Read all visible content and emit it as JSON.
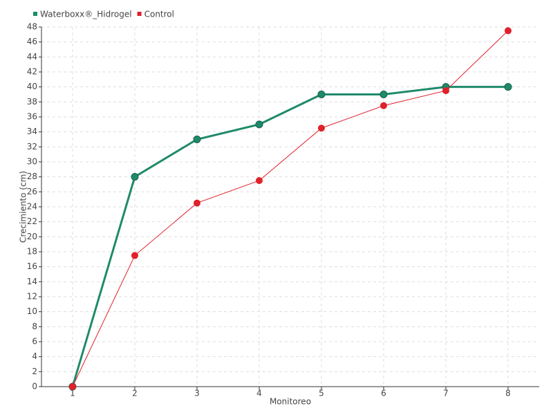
{
  "chart_data": {
    "type": "line",
    "x_label": "Monitoreo",
    "y_label": "Crecimiento (cm)",
    "categories": [
      "1",
      "2",
      "3",
      "4",
      "5",
      "6",
      "7",
      "8"
    ],
    "series": [
      {
        "name": "Waterboxx®_Hidrogel",
        "color": "#1f8a6a",
        "values": [
          0,
          28,
          33,
          35,
          39,
          39,
          40,
          40
        ]
      },
      {
        "name": "Control",
        "color": "#e0202a",
        "values": [
          0,
          17.5,
          24.5,
          27.5,
          34.5,
          37.5,
          39.5,
          47.5
        ]
      }
    ],
    "ylim": [
      0,
      48
    ],
    "yticks": [
      0,
      2,
      4,
      6,
      8,
      10,
      12,
      14,
      16,
      18,
      20,
      22,
      24,
      26,
      28,
      30,
      32,
      34,
      36,
      38,
      40,
      42,
      44,
      46,
      48
    ],
    "grid": true,
    "legend": "top-left"
  }
}
